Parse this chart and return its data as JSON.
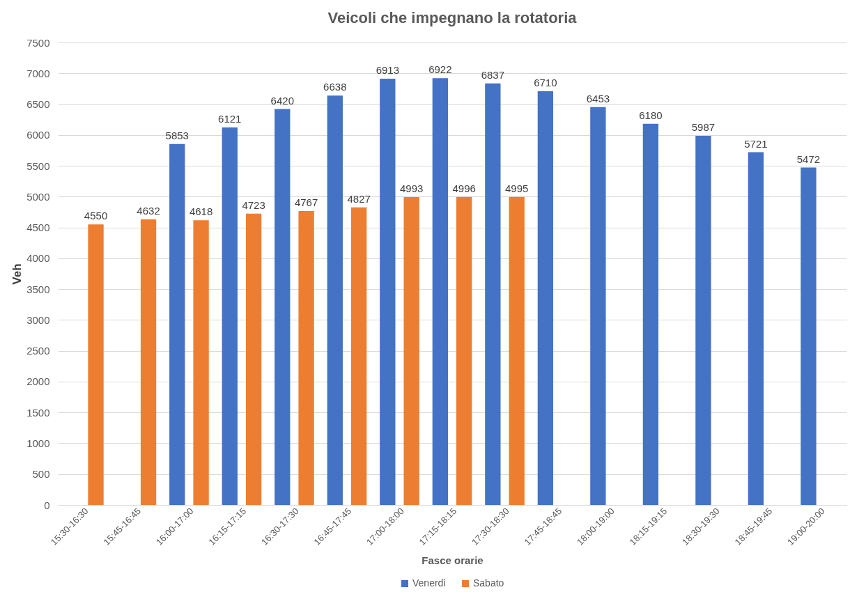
{
  "chart_data": {
    "type": "bar",
    "title": "Veicoli che impegnano la rotatoria",
    "xlabel": "Fasce orarie",
    "ylabel": "Veh",
    "categories": [
      "15:30-16:30",
      "15:45-16:45",
      "16:00-17:00",
      "16:15-17:15",
      "16:30-17:30",
      "16:45-17:45",
      "17:00-18:00",
      "17:15-18:15",
      "17:30-18:30",
      "17:45-18:45",
      "18:00-19:00",
      "18:15-19:15",
      "18:30-19:30",
      "18:45-19:45",
      "19:00-20:00"
    ],
    "series": [
      {
        "name": "Venerdì",
        "color": "#4472c4",
        "values": [
          null,
          null,
          5853,
          6121,
          6420,
          6638,
          6913,
          6922,
          6837,
          6710,
          6453,
          6180,
          5987,
          5721,
          5472
        ]
      },
      {
        "name": "Sabato",
        "color": "#ed7d31",
        "values": [
          4550,
          4632,
          4618,
          4723,
          4767,
          4827,
          4993,
          4996,
          4995,
          null,
          null,
          null,
          null,
          null,
          null
        ]
      }
    ],
    "ylim": [
      0,
      7500
    ],
    "yticks": [
      0,
      500,
      1000,
      1500,
      2000,
      2500,
      3000,
      3500,
      4000,
      4500,
      5000,
      5500,
      6000,
      6500,
      7000,
      7500
    ],
    "grid": "y",
    "legend": "bottom",
    "data_labels": true
  }
}
